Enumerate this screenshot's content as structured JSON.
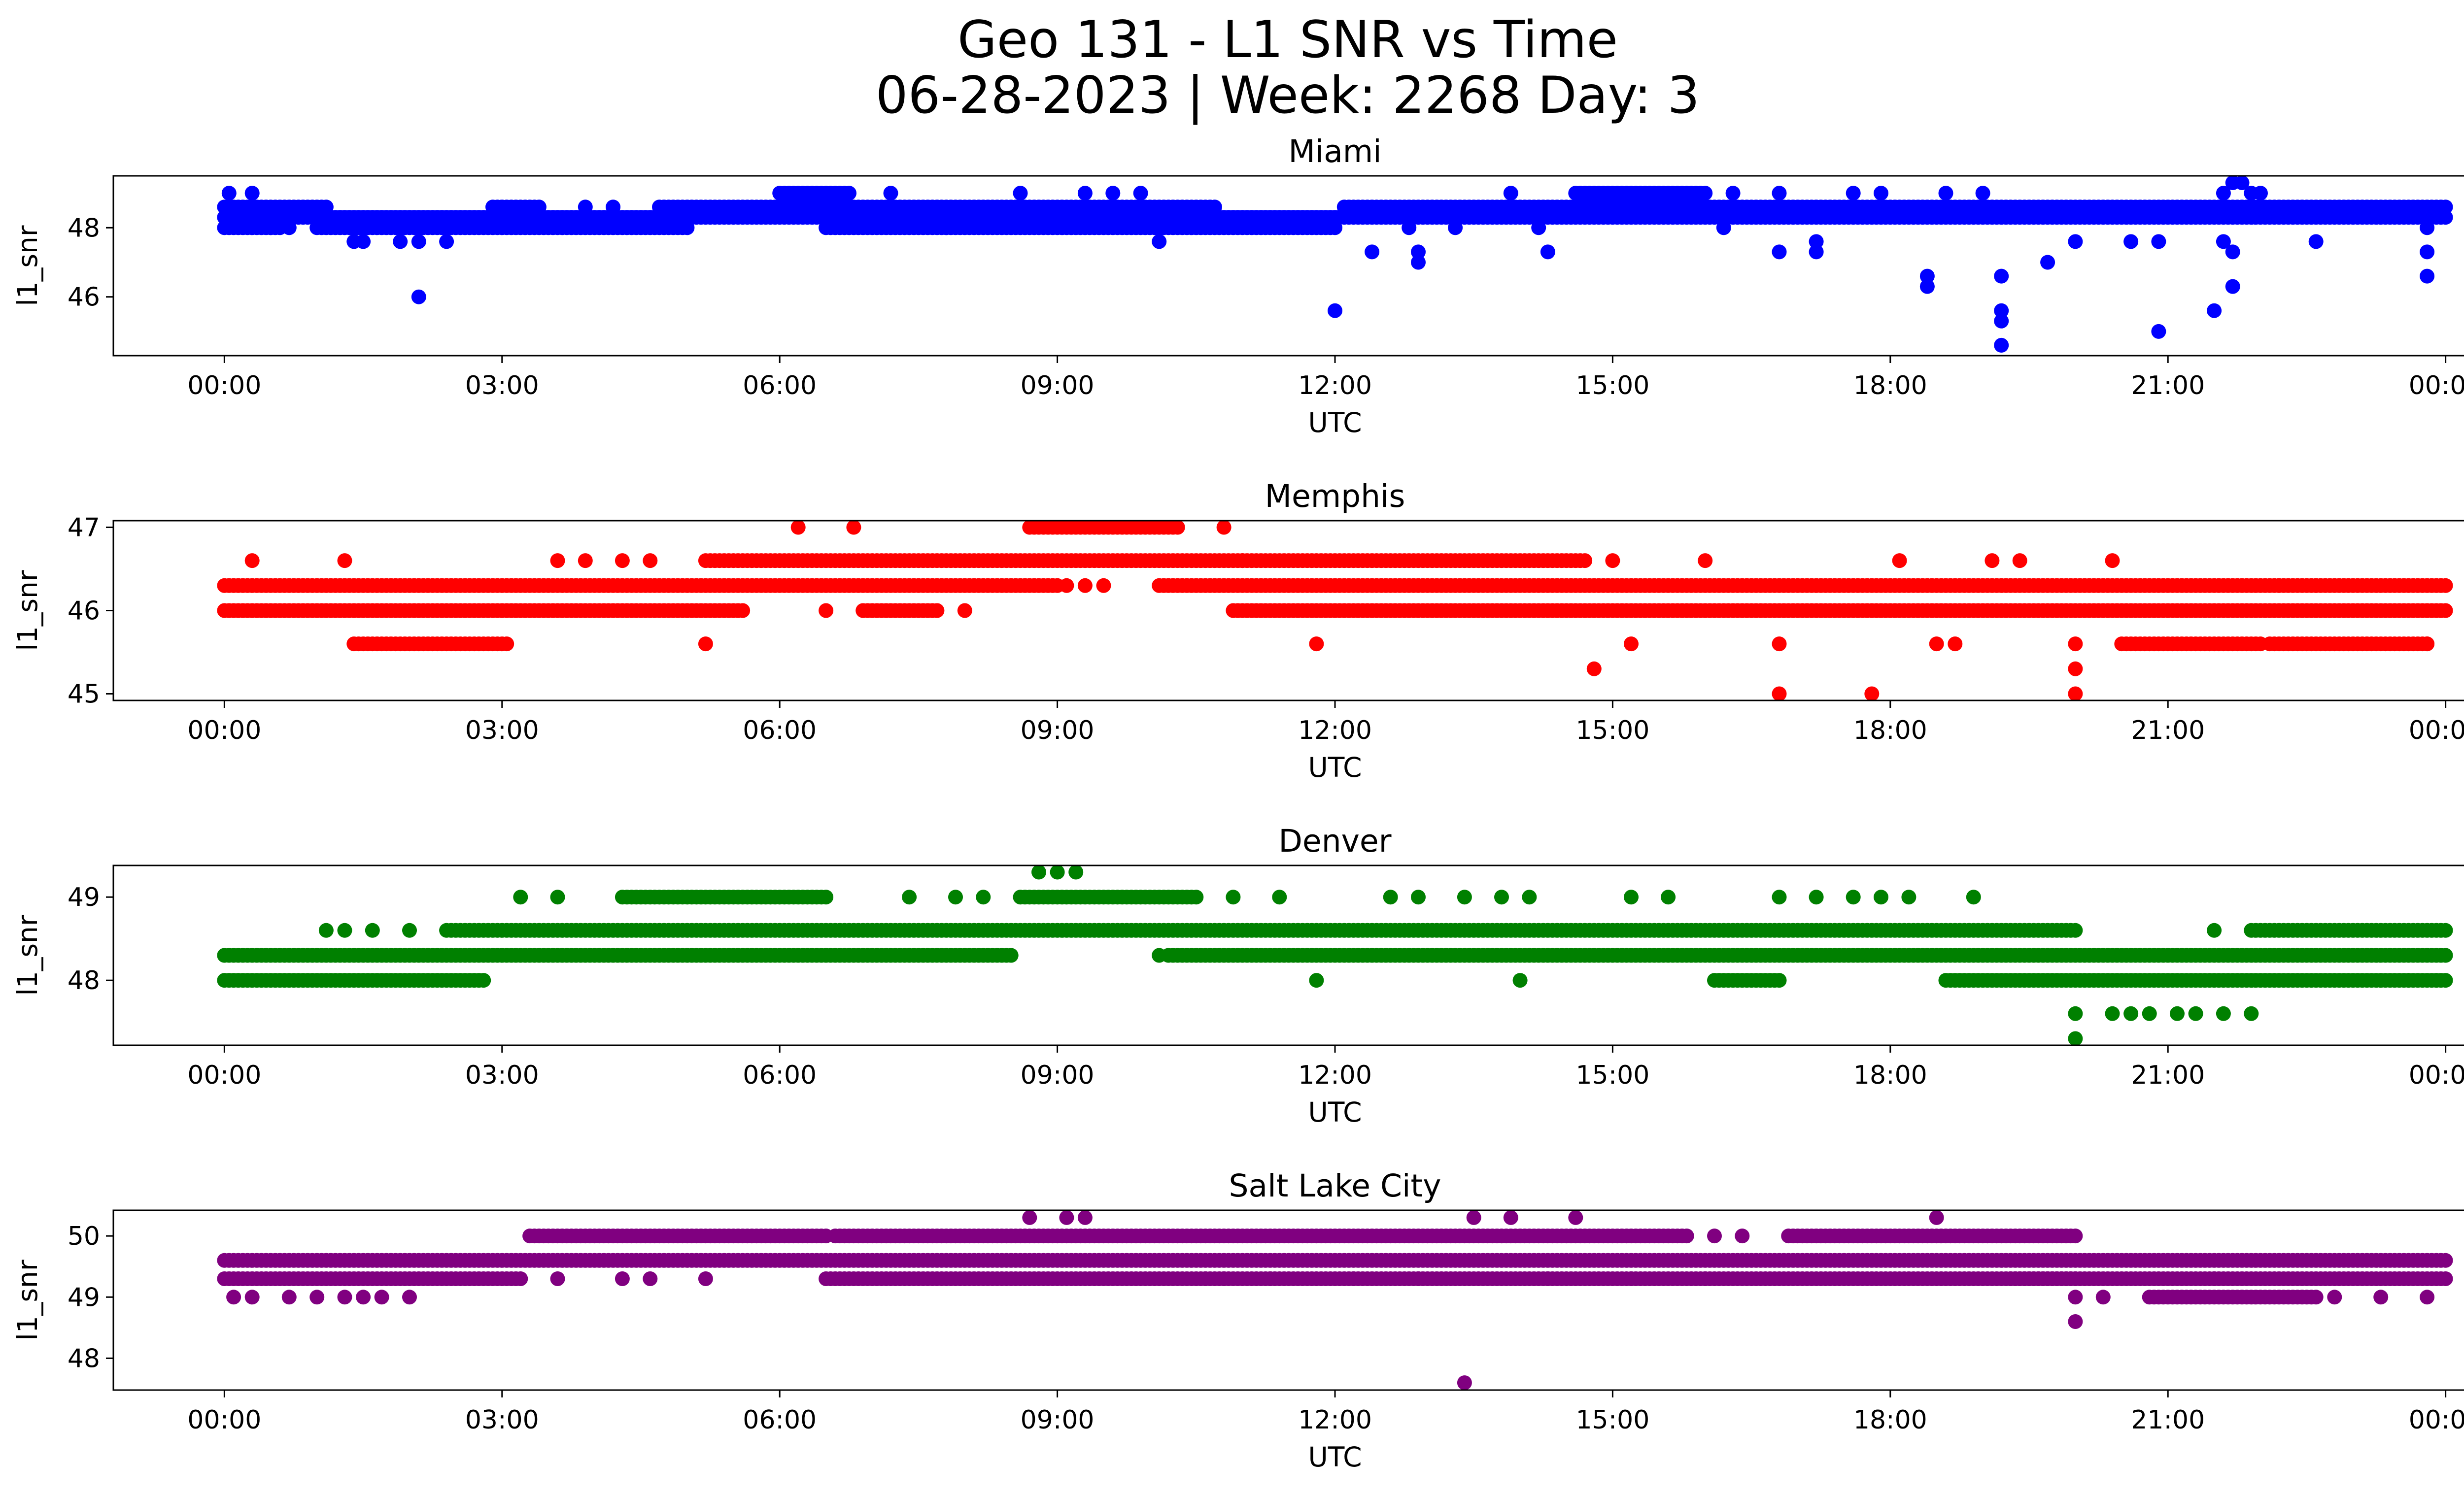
{
  "figure": {
    "title_line1": "Geo 131 - L1 SNR vs Time",
    "title_line2": "06-28-2023 | Week: 2268 Day: 3"
  },
  "chart_data": [
    {
      "type": "scatter",
      "title": "Miami",
      "xlabel": "UTC",
      "ylabel": "l1_snr",
      "color": "#0000ff",
      "x_ticks": [
        "00:00",
        "03:00",
        "06:00",
        "09:00",
        "12:00",
        "15:00",
        "18:00",
        "21:00",
        "00:00"
      ],
      "y_ticks": [
        46,
        48
      ],
      "xlim_hours": [
        -1.2,
        25.2
      ],
      "ylim": [
        44.3,
        49.5
      ],
      "grid": false,
      "dense_bands": [
        {
          "y": 48.3,
          "segments": [
            [
              0.0,
              24.0
            ]
          ]
        },
        {
          "y": 48.6,
          "segments": [
            [
              0.0,
              1.1
            ],
            [
              2.9,
              3.4
            ],
            [
              4.7,
              10.7
            ],
            [
              12.1,
              24.0
            ]
          ]
        },
        {
          "y": 48.0,
          "segments": [
            [
              0.0,
              0.6
            ],
            [
              1.0,
              5.0
            ],
            [
              6.5,
              12.0
            ]
          ]
        },
        {
          "y": 49.0,
          "segments": [
            [
              6.0,
              6.75
            ],
            [
              14.6,
              16.0
            ]
          ]
        }
      ],
      "points": [
        [
          0.05,
          49.0
        ],
        [
          0.3,
          49.0
        ],
        [
          0.5,
          48.0
        ],
        [
          0.7,
          48.0
        ],
        [
          1.4,
          47.6
        ],
        [
          1.5,
          47.6
        ],
        [
          1.9,
          47.6
        ],
        [
          2.1,
          47.6
        ],
        [
          2.4,
          47.6
        ],
        [
          2.1,
          46.0
        ],
        [
          3.9,
          48.6
        ],
        [
          4.2,
          48.6
        ],
        [
          7.2,
          49.0
        ],
        [
          7.8,
          48.0
        ],
        [
          8.6,
          49.0
        ],
        [
          9.3,
          49.0
        ],
        [
          9.6,
          49.0
        ],
        [
          9.9,
          49.0
        ],
        [
          10.1,
          47.6
        ],
        [
          12.0,
          45.6
        ],
        [
          12.4,
          47.3
        ],
        [
          12.8,
          48.0
        ],
        [
          12.9,
          47.3
        ],
        [
          12.9,
          47.0
        ],
        [
          13.3,
          48.0
        ],
        [
          13.9,
          49.0
        ],
        [
          14.2,
          48.0
        ],
        [
          14.3,
          47.3
        ],
        [
          16.2,
          48.0
        ],
        [
          16.3,
          49.0
        ],
        [
          16.8,
          49.0
        ],
        [
          16.8,
          47.3
        ],
        [
          17.2,
          47.6
        ],
        [
          17.2,
          47.3
        ],
        [
          17.6,
          49.0
        ],
        [
          17.9,
          49.0
        ],
        [
          18.4,
          46.6
        ],
        [
          18.4,
          46.3
        ],
        [
          18.6,
          49.0
        ],
        [
          19.0,
          49.0
        ],
        [
          19.2,
          46.6
        ],
        [
          19.2,
          45.6
        ],
        [
          19.2,
          45.3
        ],
        [
          19.2,
          44.6
        ],
        [
          19.7,
          47.0
        ],
        [
          20.0,
          47.6
        ],
        [
          20.6,
          47.6
        ],
        [
          20.9,
          45.0
        ],
        [
          20.9,
          47.6
        ],
        [
          21.5,
          45.6
        ],
        [
          21.6,
          47.6
        ],
        [
          21.6,
          49.0
        ],
        [
          21.7,
          49.3
        ],
        [
          21.8,
          49.3
        ],
        [
          21.7,
          46.3
        ],
        [
          21.7,
          47.3
        ],
        [
          21.9,
          49.0
        ],
        [
          22.0,
          49.0
        ],
        [
          22.6,
          47.6
        ],
        [
          23.8,
          48.0
        ],
        [
          23.8,
          47.3
        ],
        [
          23.8,
          46.6
        ]
      ]
    },
    {
      "type": "scatter",
      "title": "Memphis",
      "xlabel": "UTC",
      "ylabel": "l1_snr",
      "color": "#ff0000",
      "x_ticks": [
        "00:00",
        "03:00",
        "06:00",
        "09:00",
        "12:00",
        "15:00",
        "18:00",
        "21:00",
        "00:00"
      ],
      "y_ticks": [
        45,
        46,
        47
      ],
      "xlim_hours": [
        -1.2,
        25.2
      ],
      "ylim": [
        44.92,
        47.08
      ],
      "grid": false,
      "dense_bands": [
        {
          "y": 46.3,
          "segments": [
            [
              0.0,
              9.0
            ],
            [
              10.1,
              24.0
            ]
          ]
        },
        {
          "y": 46.0,
          "segments": [
            [
              0.0,
              5.6
            ],
            [
              6.9,
              7.7
            ],
            [
              10.9,
              24.0
            ]
          ]
        },
        {
          "y": 46.6,
          "segments": [
            [
              5.2,
              11.0
            ],
            [
              11.0,
              14.7
            ]
          ]
        },
        {
          "y": 45.6,
          "segments": [
            [
              1.4,
              3.05
            ],
            [
              20.5,
              22.0
            ],
            [
              22.1,
              23.8
            ]
          ]
        },
        {
          "y": 47.0,
          "segments": [
            [
              8.7,
              10.3
            ]
          ]
        }
      ],
      "points": [
        [
          0.3,
          46.6
        ],
        [
          1.3,
          46.6
        ],
        [
          3.6,
          46.6
        ],
        [
          3.9,
          46.6
        ],
        [
          4.3,
          46.6
        ],
        [
          4.6,
          46.6
        ],
        [
          5.2,
          45.6
        ],
        [
          6.2,
          47.0
        ],
        [
          6.5,
          46.0
        ],
        [
          6.8,
          47.0
        ],
        [
          8.0,
          46.0
        ],
        [
          9.1,
          46.3
        ],
        [
          9.3,
          46.3
        ],
        [
          9.5,
          46.3
        ],
        [
          10.8,
          47.0
        ],
        [
          11.8,
          45.6
        ],
        [
          14.8,
          45.3
        ],
        [
          15.0,
          46.6
        ],
        [
          15.2,
          45.6
        ],
        [
          16.0,
          46.6
        ],
        [
          16.8,
          45.6
        ],
        [
          16.8,
          45.0
        ],
        [
          17.8,
          45.0
        ],
        [
          18.1,
          46.6
        ],
        [
          18.5,
          45.6
        ],
        [
          18.7,
          45.6
        ],
        [
          19.1,
          46.6
        ],
        [
          19.4,
          46.6
        ],
        [
          20.0,
          45.6
        ],
        [
          20.0,
          45.3
        ],
        [
          20.0,
          45.0
        ],
        [
          20.4,
          46.6
        ],
        [
          22.2,
          46.3
        ],
        [
          22.6,
          46.3
        ],
        [
          23.8,
          45.6
        ]
      ]
    },
    {
      "type": "scatter",
      "title": "Denver",
      "xlabel": "UTC",
      "ylabel": "l1_snr",
      "color": "#008000",
      "x_ticks": [
        "00:00",
        "03:00",
        "06:00",
        "09:00",
        "12:00",
        "15:00",
        "18:00",
        "21:00",
        "00:00"
      ],
      "y_ticks": [
        48,
        49
      ],
      "xlim_hours": [
        -1.2,
        25.2
      ],
      "ylim": [
        47.22,
        49.38
      ],
      "grid": false,
      "dense_bands": [
        {
          "y": 48.3,
          "segments": [
            [
              0.0,
              8.5
            ],
            [
              10.2,
              24.0
            ]
          ]
        },
        {
          "y": 48.0,
          "segments": [
            [
              0.0,
              2.8
            ],
            [
              16.1,
              16.8
            ],
            [
              18.6,
              24.0
            ]
          ]
        },
        {
          "y": 48.6,
          "segments": [
            [
              2.4,
              20.0
            ],
            [
              21.9,
              24.0
            ]
          ]
        },
        {
          "y": 49.0,
          "segments": [
            [
              4.3,
              6.5
            ],
            [
              8.6,
              10.5
            ]
          ]
        }
      ],
      "points": [
        [
          1.1,
          48.6
        ],
        [
          1.3,
          48.6
        ],
        [
          1.6,
          48.6
        ],
        [
          2.0,
          48.6
        ],
        [
          3.2,
          49.0
        ],
        [
          3.6,
          49.0
        ],
        [
          7.4,
          49.0
        ],
        [
          7.9,
          49.0
        ],
        [
          8.2,
          49.0
        ],
        [
          8.8,
          49.3
        ],
        [
          9.0,
          49.3
        ],
        [
          9.2,
          49.3
        ],
        [
          10.1,
          48.3
        ],
        [
          10.9,
          49.0
        ],
        [
          11.4,
          49.0
        ],
        [
          11.8,
          48.0
        ],
        [
          12.6,
          49.0
        ],
        [
          12.9,
          49.0
        ],
        [
          13.4,
          49.0
        ],
        [
          13.8,
          49.0
        ],
        [
          14.0,
          48.0
        ],
        [
          14.1,
          49.0
        ],
        [
          15.2,
          49.0
        ],
        [
          15.6,
          49.0
        ],
        [
          16.8,
          49.0
        ],
        [
          17.2,
          49.0
        ],
        [
          17.6,
          49.0
        ],
        [
          17.9,
          49.0
        ],
        [
          18.2,
          49.0
        ],
        [
          18.9,
          49.0
        ],
        [
          20.0,
          47.6
        ],
        [
          20.0,
          47.3
        ],
        [
          20.4,
          47.6
        ],
        [
          20.6,
          47.6
        ],
        [
          20.8,
          47.6
        ],
        [
          21.1,
          47.6
        ],
        [
          21.3,
          47.6
        ],
        [
          21.6,
          47.6
        ],
        [
          21.5,
          48.6
        ],
        [
          21.9,
          47.6
        ],
        [
          23.3,
          48.0
        ],
        [
          23.6,
          48.0
        ],
        [
          23.9,
          48.0
        ]
      ]
    },
    {
      "type": "scatter",
      "title": "Salt Lake City",
      "xlabel": "UTC",
      "ylabel": "l1_snr",
      "color": "#800080",
      "x_ticks": [
        "00:00",
        "03:00",
        "06:00",
        "09:00",
        "12:00",
        "15:00",
        "18:00",
        "21:00",
        "00:00"
      ],
      "y_ticks": [
        48,
        49,
        50
      ],
      "xlim_hours": [
        -1.2,
        25.2
      ],
      "ylim": [
        47.48,
        50.42
      ],
      "grid": false,
      "dense_bands": [
        {
          "y": 49.6,
          "segments": [
            [
              0.0,
              24.0
            ]
          ]
        },
        {
          "y": 49.3,
          "segments": [
            [
              0.0,
              3.2
            ],
            [
              6.5,
              10.6
            ],
            [
              10.6,
              20.0
            ],
            [
              19.3,
              24.0
            ]
          ]
        },
        {
          "y": 50.0,
          "segments": [
            [
              3.3,
              6.5
            ],
            [
              6.6,
              15.8
            ],
            [
              16.9,
              20.0
            ]
          ]
        },
        {
          "y": 49.0,
          "segments": [
            [
              20.8,
              22.6
            ]
          ]
        }
      ],
      "points": [
        [
          0.1,
          49.0
        ],
        [
          0.3,
          49.0
        ],
        [
          0.7,
          49.0
        ],
        [
          1.0,
          49.0
        ],
        [
          1.3,
          49.0
        ],
        [
          1.5,
          49.0
        ],
        [
          1.7,
          49.0
        ],
        [
          2.0,
          49.0
        ],
        [
          3.6,
          49.3
        ],
        [
          4.3,
          49.3
        ],
        [
          4.6,
          49.3
        ],
        [
          5.2,
          49.3
        ],
        [
          8.7,
          50.3
        ],
        [
          9.1,
          50.3
        ],
        [
          9.3,
          50.3
        ],
        [
          10.8,
          49.3
        ],
        [
          11.3,
          49.3
        ],
        [
          12.2,
          49.3
        ],
        [
          12.9,
          49.3
        ],
        [
          13.4,
          47.6
        ],
        [
          13.5,
          50.3
        ],
        [
          13.9,
          50.3
        ],
        [
          14.6,
          50.3
        ],
        [
          14.3,
          49.3
        ],
        [
          15.2,
          49.3
        ],
        [
          16.0,
          49.3
        ],
        [
          16.1,
          50.0
        ],
        [
          16.4,
          50.0
        ],
        [
          18.5,
          50.3
        ],
        [
          20.0,
          49.0
        ],
        [
          20.0,
          48.6
        ],
        [
          20.3,
          49.0
        ],
        [
          21.5,
          49.3
        ],
        [
          22.8,
          49.0
        ],
        [
          23.3,
          49.0
        ],
        [
          23.8,
          49.0
        ]
      ]
    }
  ]
}
